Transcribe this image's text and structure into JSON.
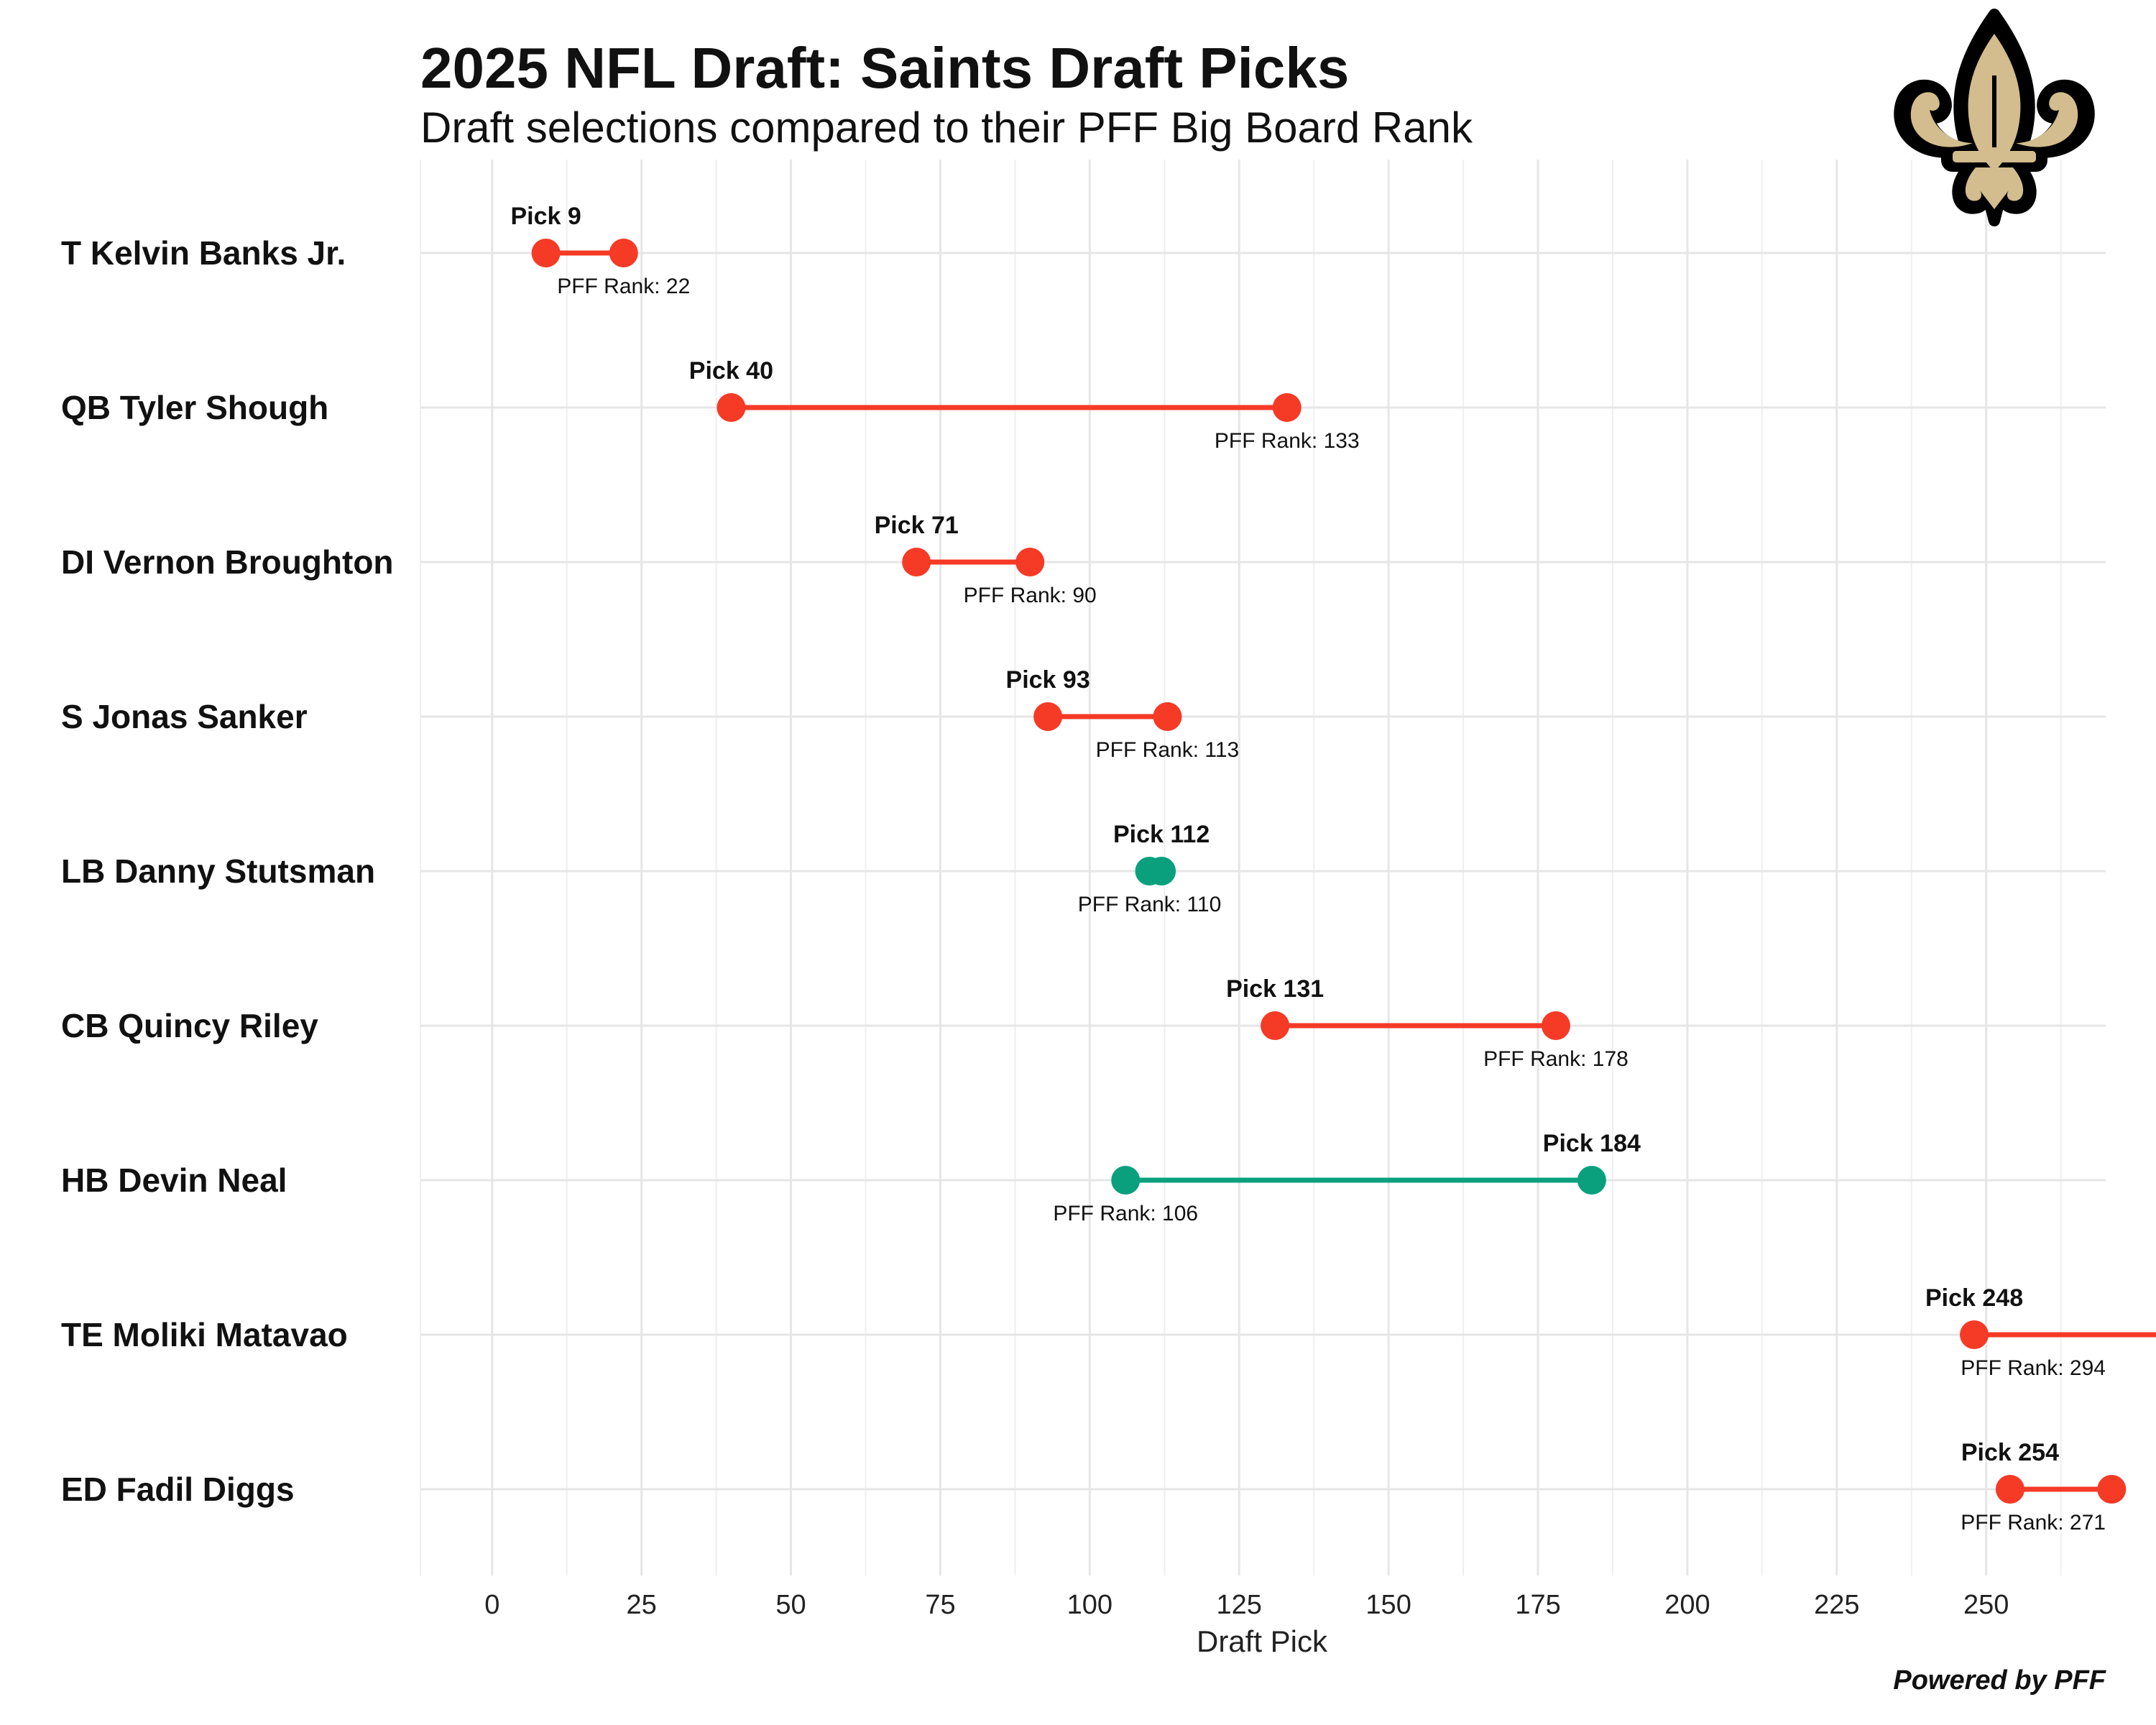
{
  "chart_data": {
    "type": "dumbbell",
    "title": "2025 NFL Draft: Saints Draft Picks",
    "subtitle": "Draft selections compared to their PFF Big Board Rank",
    "xlabel": "Draft Pick",
    "xlim": [
      -12,
      270
    ],
    "x_ticks": [
      0,
      25,
      50,
      75,
      100,
      125,
      150,
      175,
      200,
      225,
      250
    ],
    "grid": true,
    "logo": "fleur-de-lis-logo",
    "credit": "Powered by PFF",
    "colors": {
      "reach": "#f53a26",
      "value": "#0aa07e",
      "grid": "#e6e6e6"
    },
    "players": [
      {
        "name": "T Kelvin Banks Jr.",
        "pick": 9,
        "pff_rank": 22,
        "pick_label": "Pick 9",
        "rank_label": "PFF Rank: 22"
      },
      {
        "name": "QB Tyler Shough",
        "pick": 40,
        "pff_rank": 133,
        "pick_label": "Pick 40",
        "rank_label": "PFF Rank: 133"
      },
      {
        "name": "DI Vernon Broughton",
        "pick": 71,
        "pff_rank": 90,
        "pick_label": "Pick 71",
        "rank_label": "PFF Rank: 90"
      },
      {
        "name": "S Jonas Sanker",
        "pick": 93,
        "pff_rank": 113,
        "pick_label": "Pick 93",
        "rank_label": "PFF Rank: 113"
      },
      {
        "name": "LB Danny Stutsman",
        "pick": 112,
        "pff_rank": 110,
        "pick_label": "Pick 112",
        "rank_label": "PFF Rank: 110"
      },
      {
        "name": "CB Quincy Riley",
        "pick": 131,
        "pff_rank": 178,
        "pick_label": "Pick 131",
        "rank_label": "PFF Rank: 178"
      },
      {
        "name": "HB Devin Neal",
        "pick": 184,
        "pff_rank": 106,
        "pick_label": "Pick 184",
        "rank_label": "PFF Rank: 106"
      },
      {
        "name": "TE Moliki Matavao",
        "pick": 248,
        "pff_rank": 294,
        "pick_label": "Pick 248",
        "rank_label": "PFF Rank: 294"
      },
      {
        "name": "ED Fadil Diggs",
        "pick": 254,
        "pff_rank": 271,
        "pick_label": "Pick 254",
        "rank_label": "PFF Rank: 271"
      }
    ]
  }
}
